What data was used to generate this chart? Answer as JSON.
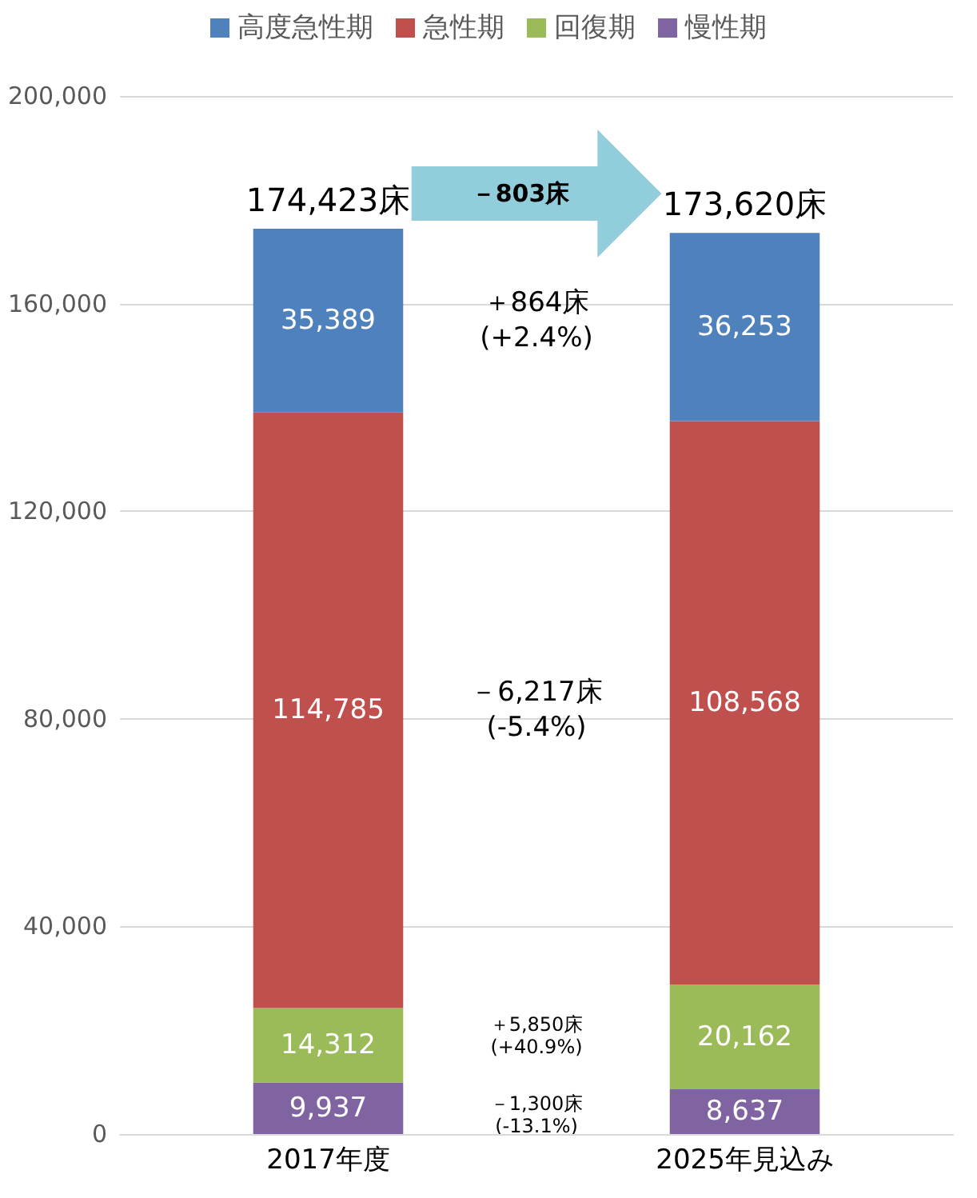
{
  "chart_data": {
    "type": "bar",
    "stacked": true,
    "categories": [
      "2017年度",
      "2025年見込み"
    ],
    "series": [
      {
        "name": "慢性期",
        "color": "#8064a2",
        "values": [
          9937,
          8637
        ],
        "value_labels": [
          "9,937",
          "8,637"
        ]
      },
      {
        "name": "回復期",
        "color": "#9bbb59",
        "values": [
          14312,
          20162
        ],
        "value_labels": [
          "14,312",
          "20,162"
        ]
      },
      {
        "name": "急性期",
        "color": "#c0504d",
        "values": [
          114785,
          108568
        ],
        "value_labels": [
          "114,785",
          "108,568"
        ]
      },
      {
        "name": "高度急性期",
        "color": "#4f81bd",
        "values": [
          35389,
          36253
        ],
        "value_labels": [
          "35,389",
          "36,253"
        ]
      }
    ],
    "ylim": [
      0,
      200000
    ],
    "yticks": [
      0,
      {
        "value": 40000,
        "label": "40,000"
      },
      {
        "value": 80000,
        "label": "80,000"
      },
      {
        "value": 120000,
        "label": "120,000"
      },
      {
        "value": 160000,
        "label": "160,000"
      },
      {
        "value": 200000,
        "label": "200,000"
      }
    ],
    "totals": [
      "174,423床",
      "173,620床"
    ],
    "annotations": [
      "－803床",
      "－1,300床\n(-13.1%)",
      "＋5,850床\n(+40.9%)",
      "－6,217床\n(-5.4%)",
      "＋864床\n(+2.4%)"
    ],
    "grid": "y",
    "legend": "top"
  }
}
